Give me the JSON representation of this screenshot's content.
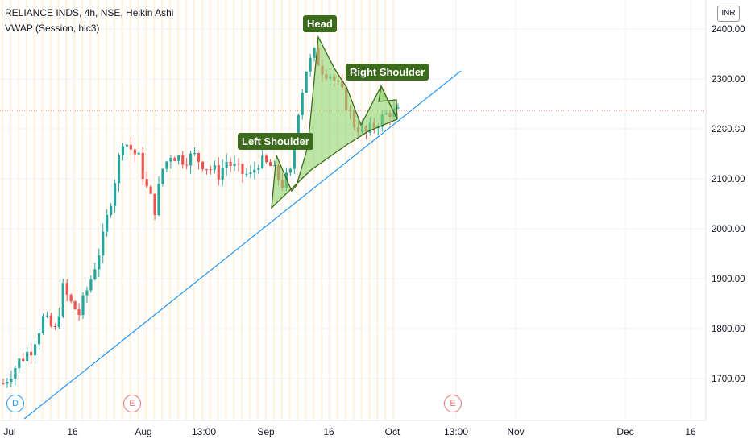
{
  "legend": {
    "symbol_line": "RELIANCE INDS, 4h, NSE, Heikin Ashi",
    "indicator_line": "VWAP (Session, hlc3)"
  },
  "currency": "INR",
  "price_badges": [
    {
      "text": "2232.05",
      "color": "#ef5350"
    },
    {
      "text": "2225.25",
      "color": "#ef5350"
    }
  ],
  "events": [
    {
      "text": "D",
      "color": "#2196f3"
    },
    {
      "text": "E",
      "color": "#e57373"
    },
    {
      "text": "E",
      "color": "#e57373"
    }
  ],
  "annotations": {
    "head": "Head",
    "left_shoulder": "Left Shoulder",
    "right_shoulder": "Right Shoulder"
  },
  "colors": {
    "up": "#26a69a",
    "down": "#ef5350",
    "trendline": "#2196f3",
    "pattern_fill": "#8fd46e",
    "pattern_stroke": "#3d6b1d",
    "session_bg": "#fff3e0"
  },
  "chart_data": {
    "type": "candlestick",
    "symbol": "RELIANCE INDS",
    "timeframe": "4h",
    "exchange": "NSE",
    "style": "Heikin Ashi",
    "y_ticks": [
      1700,
      1800,
      1900,
      2000,
      2100,
      2200,
      2300,
      2400
    ],
    "ylim": [
      1640,
      2450
    ],
    "x_ticks": [
      "Jul",
      "16",
      "Aug",
      "13:00",
      "Sep",
      "16",
      "Oct",
      "13:00",
      "Nov",
      "Dec",
      "16"
    ],
    "last_price": 2232.05,
    "second_price": 2225.25,
    "path": [
      [
        0,
        1690
      ],
      [
        4,
        1735
      ],
      [
        7,
        1760
      ],
      [
        10,
        1820
      ],
      [
        13,
        1795
      ],
      [
        15,
        1880
      ],
      [
        17,
        1850
      ],
      [
        19,
        1830
      ],
      [
        22,
        1900
      ],
      [
        25,
        1980
      ],
      [
        28,
        2100
      ],
      [
        30,
        2180
      ],
      [
        32,
        2160
      ],
      [
        34,
        2140
      ],
      [
        36,
        2080
      ],
      [
        38,
        2040
      ],
      [
        40,
        2120
      ],
      [
        42,
        2150
      ],
      [
        45,
        2140
      ],
      [
        48,
        2145
      ],
      [
        51,
        2125
      ],
      [
        54,
        2110
      ],
      [
        56,
        2135
      ],
      [
        59,
        2115
      ],
      [
        62,
        2105
      ],
      [
        64,
        2135
      ],
      [
        67,
        2125
      ],
      [
        70,
        2090
      ],
      [
        72,
        2110
      ],
      [
        74,
        2240
      ],
      [
        76,
        2320
      ],
      [
        78,
        2350
      ],
      [
        80,
        2320
      ],
      [
        82,
        2310
      ],
      [
        85,
        2270
      ],
      [
        88,
        2210
      ],
      [
        91,
        2190
      ],
      [
        94,
        2215
      ],
      [
        97,
        2235
      ],
      [
        99,
        2232
      ]
    ],
    "trendline": [
      [
        1,
        1616
      ],
      [
        93,
        2310
      ]
    ],
    "head_and_shoulders": {
      "left_shoulder_peak": 2150,
      "head_peak": 2390,
      "right_shoulder_peak": 2280,
      "neckline": [
        2040,
        2240
      ]
    }
  }
}
